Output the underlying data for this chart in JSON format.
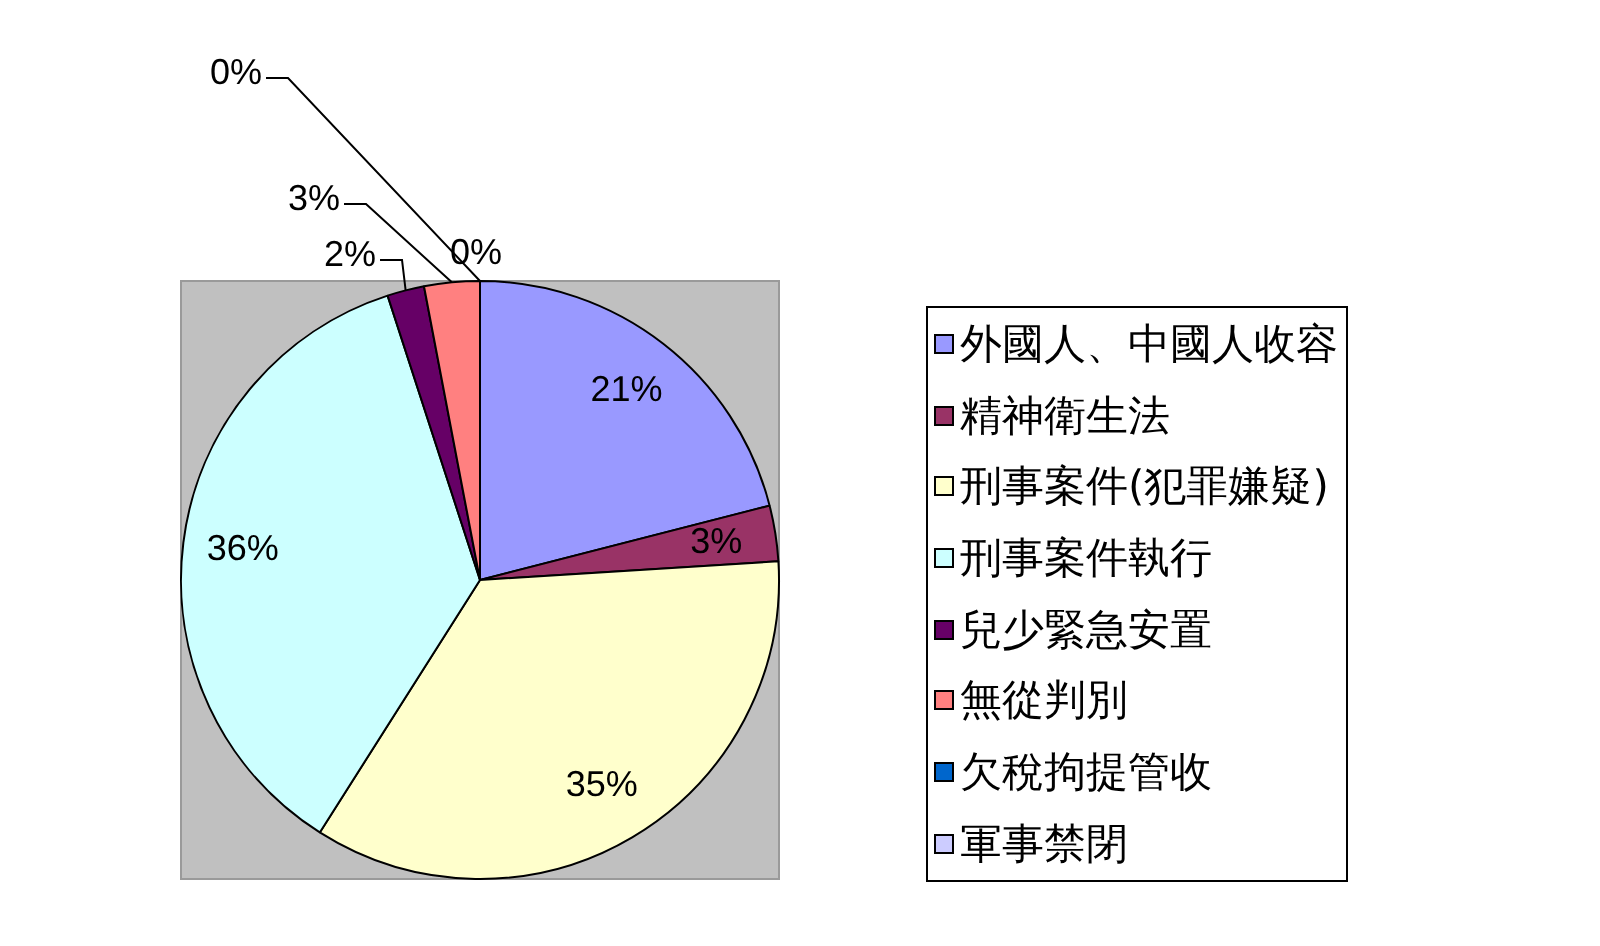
{
  "chart_data": {
    "type": "pie",
    "categories": [
      "外國人、中國人收容",
      "精神衛生法",
      "刑事案件(犯罪嫌疑)",
      "刑事案件執行",
      "兒少緊急安置",
      "無從判別",
      "欠稅拘提管收",
      "軍事禁閉"
    ],
    "values": [
      21,
      3,
      35,
      36,
      2,
      3,
      0,
      0
    ],
    "colors": [
      "#9999ff",
      "#993366",
      "#ffffcc",
      "#ccffff",
      "#660066",
      "#ff8080",
      "#0066cc",
      "#ccccff"
    ],
    "value_labels": [
      "21%",
      "3%",
      "35%",
      "36%",
      "2%",
      "3%",
      "0%",
      "0%"
    ],
    "legend": "right"
  }
}
